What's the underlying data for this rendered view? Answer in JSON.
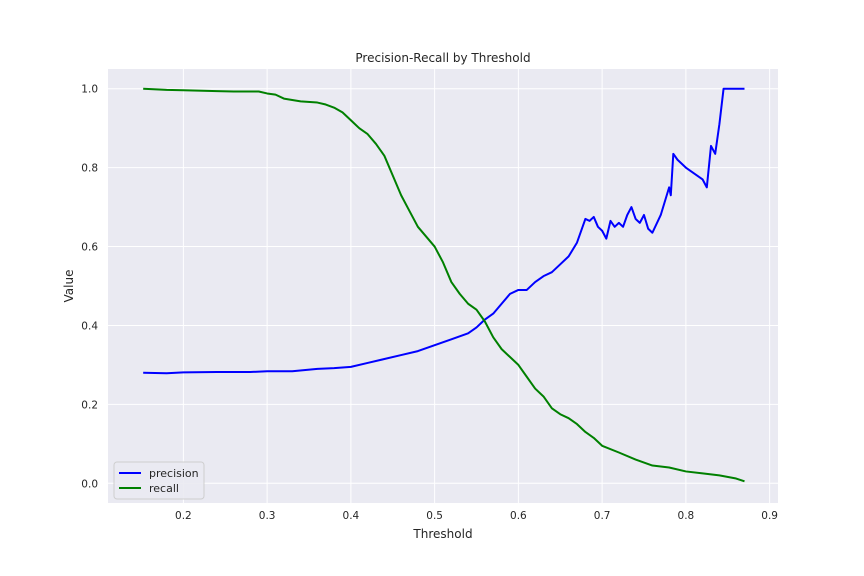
{
  "chart_data": {
    "type": "line",
    "title": "Precision-Recall by Threshold",
    "xlabel": "Threshold",
    "ylabel": "Value",
    "xlim": [
      0.11,
      0.91
    ],
    "ylim": [
      -0.05,
      1.05
    ],
    "xticks": [
      0.2,
      0.3,
      0.4,
      0.5,
      0.6,
      0.7,
      0.8,
      0.9
    ],
    "xtick_labels": [
      "0.2",
      "0.3",
      "0.4",
      "0.5",
      "0.6",
      "0.7",
      "0.8",
      "0.9"
    ],
    "yticks": [
      0.0,
      0.2,
      0.4,
      0.6,
      0.8,
      1.0
    ],
    "ytick_labels": [
      "0.0",
      "0.2",
      "0.4",
      "0.6",
      "0.8",
      "1.0"
    ],
    "grid": true,
    "legend_position": "lower-left",
    "series": [
      {
        "name": "precision",
        "color": "#0000ff",
        "x": [
          0.152,
          0.18,
          0.2,
          0.24,
          0.28,
          0.3,
          0.33,
          0.36,
          0.38,
          0.4,
          0.42,
          0.44,
          0.46,
          0.48,
          0.5,
          0.52,
          0.54,
          0.55,
          0.56,
          0.57,
          0.58,
          0.59,
          0.6,
          0.61,
          0.62,
          0.63,
          0.64,
          0.65,
          0.66,
          0.67,
          0.68,
          0.685,
          0.69,
          0.695,
          0.7,
          0.705,
          0.71,
          0.715,
          0.72,
          0.725,
          0.73,
          0.735,
          0.74,
          0.745,
          0.75,
          0.755,
          0.76,
          0.77,
          0.78,
          0.782,
          0.785,
          0.79,
          0.8,
          0.82,
          0.825,
          0.83,
          0.835,
          0.84,
          0.845,
          0.86,
          0.87
        ],
        "values": [
          0.28,
          0.279,
          0.281,
          0.282,
          0.282,
          0.284,
          0.284,
          0.29,
          0.292,
          0.295,
          0.305,
          0.315,
          0.325,
          0.335,
          0.35,
          0.365,
          0.38,
          0.395,
          0.415,
          0.43,
          0.455,
          0.48,
          0.49,
          0.49,
          0.51,
          0.525,
          0.535,
          0.555,
          0.575,
          0.61,
          0.67,
          0.665,
          0.675,
          0.65,
          0.64,
          0.62,
          0.665,
          0.65,
          0.66,
          0.65,
          0.68,
          0.7,
          0.67,
          0.66,
          0.68,
          0.645,
          0.635,
          0.68,
          0.75,
          0.73,
          0.835,
          0.82,
          0.8,
          0.77,
          0.75,
          0.855,
          0.835,
          0.91,
          1.0,
          1.0,
          1.0
        ]
      },
      {
        "name": "recall",
        "color": "#008000",
        "x": [
          0.152,
          0.18,
          0.2,
          0.24,
          0.26,
          0.29,
          0.3,
          0.31,
          0.32,
          0.34,
          0.36,
          0.37,
          0.38,
          0.39,
          0.4,
          0.41,
          0.42,
          0.43,
          0.44,
          0.45,
          0.46,
          0.47,
          0.48,
          0.49,
          0.5,
          0.51,
          0.52,
          0.53,
          0.54,
          0.55,
          0.56,
          0.57,
          0.58,
          0.59,
          0.6,
          0.61,
          0.62,
          0.63,
          0.64,
          0.65,
          0.66,
          0.67,
          0.68,
          0.69,
          0.7,
          0.72,
          0.74,
          0.76,
          0.78,
          0.8,
          0.82,
          0.84,
          0.86,
          0.87
        ],
        "values": [
          1.0,
          0.997,
          0.996,
          0.994,
          0.993,
          0.993,
          0.988,
          0.985,
          0.975,
          0.968,
          0.965,
          0.96,
          0.952,
          0.94,
          0.92,
          0.9,
          0.885,
          0.86,
          0.83,
          0.78,
          0.73,
          0.69,
          0.65,
          0.625,
          0.6,
          0.56,
          0.51,
          0.48,
          0.455,
          0.44,
          0.41,
          0.37,
          0.34,
          0.32,
          0.3,
          0.27,
          0.24,
          0.22,
          0.19,
          0.175,
          0.165,
          0.15,
          0.13,
          0.115,
          0.095,
          0.078,
          0.06,
          0.045,
          0.04,
          0.03,
          0.025,
          0.02,
          0.012,
          0.005
        ]
      }
    ]
  }
}
